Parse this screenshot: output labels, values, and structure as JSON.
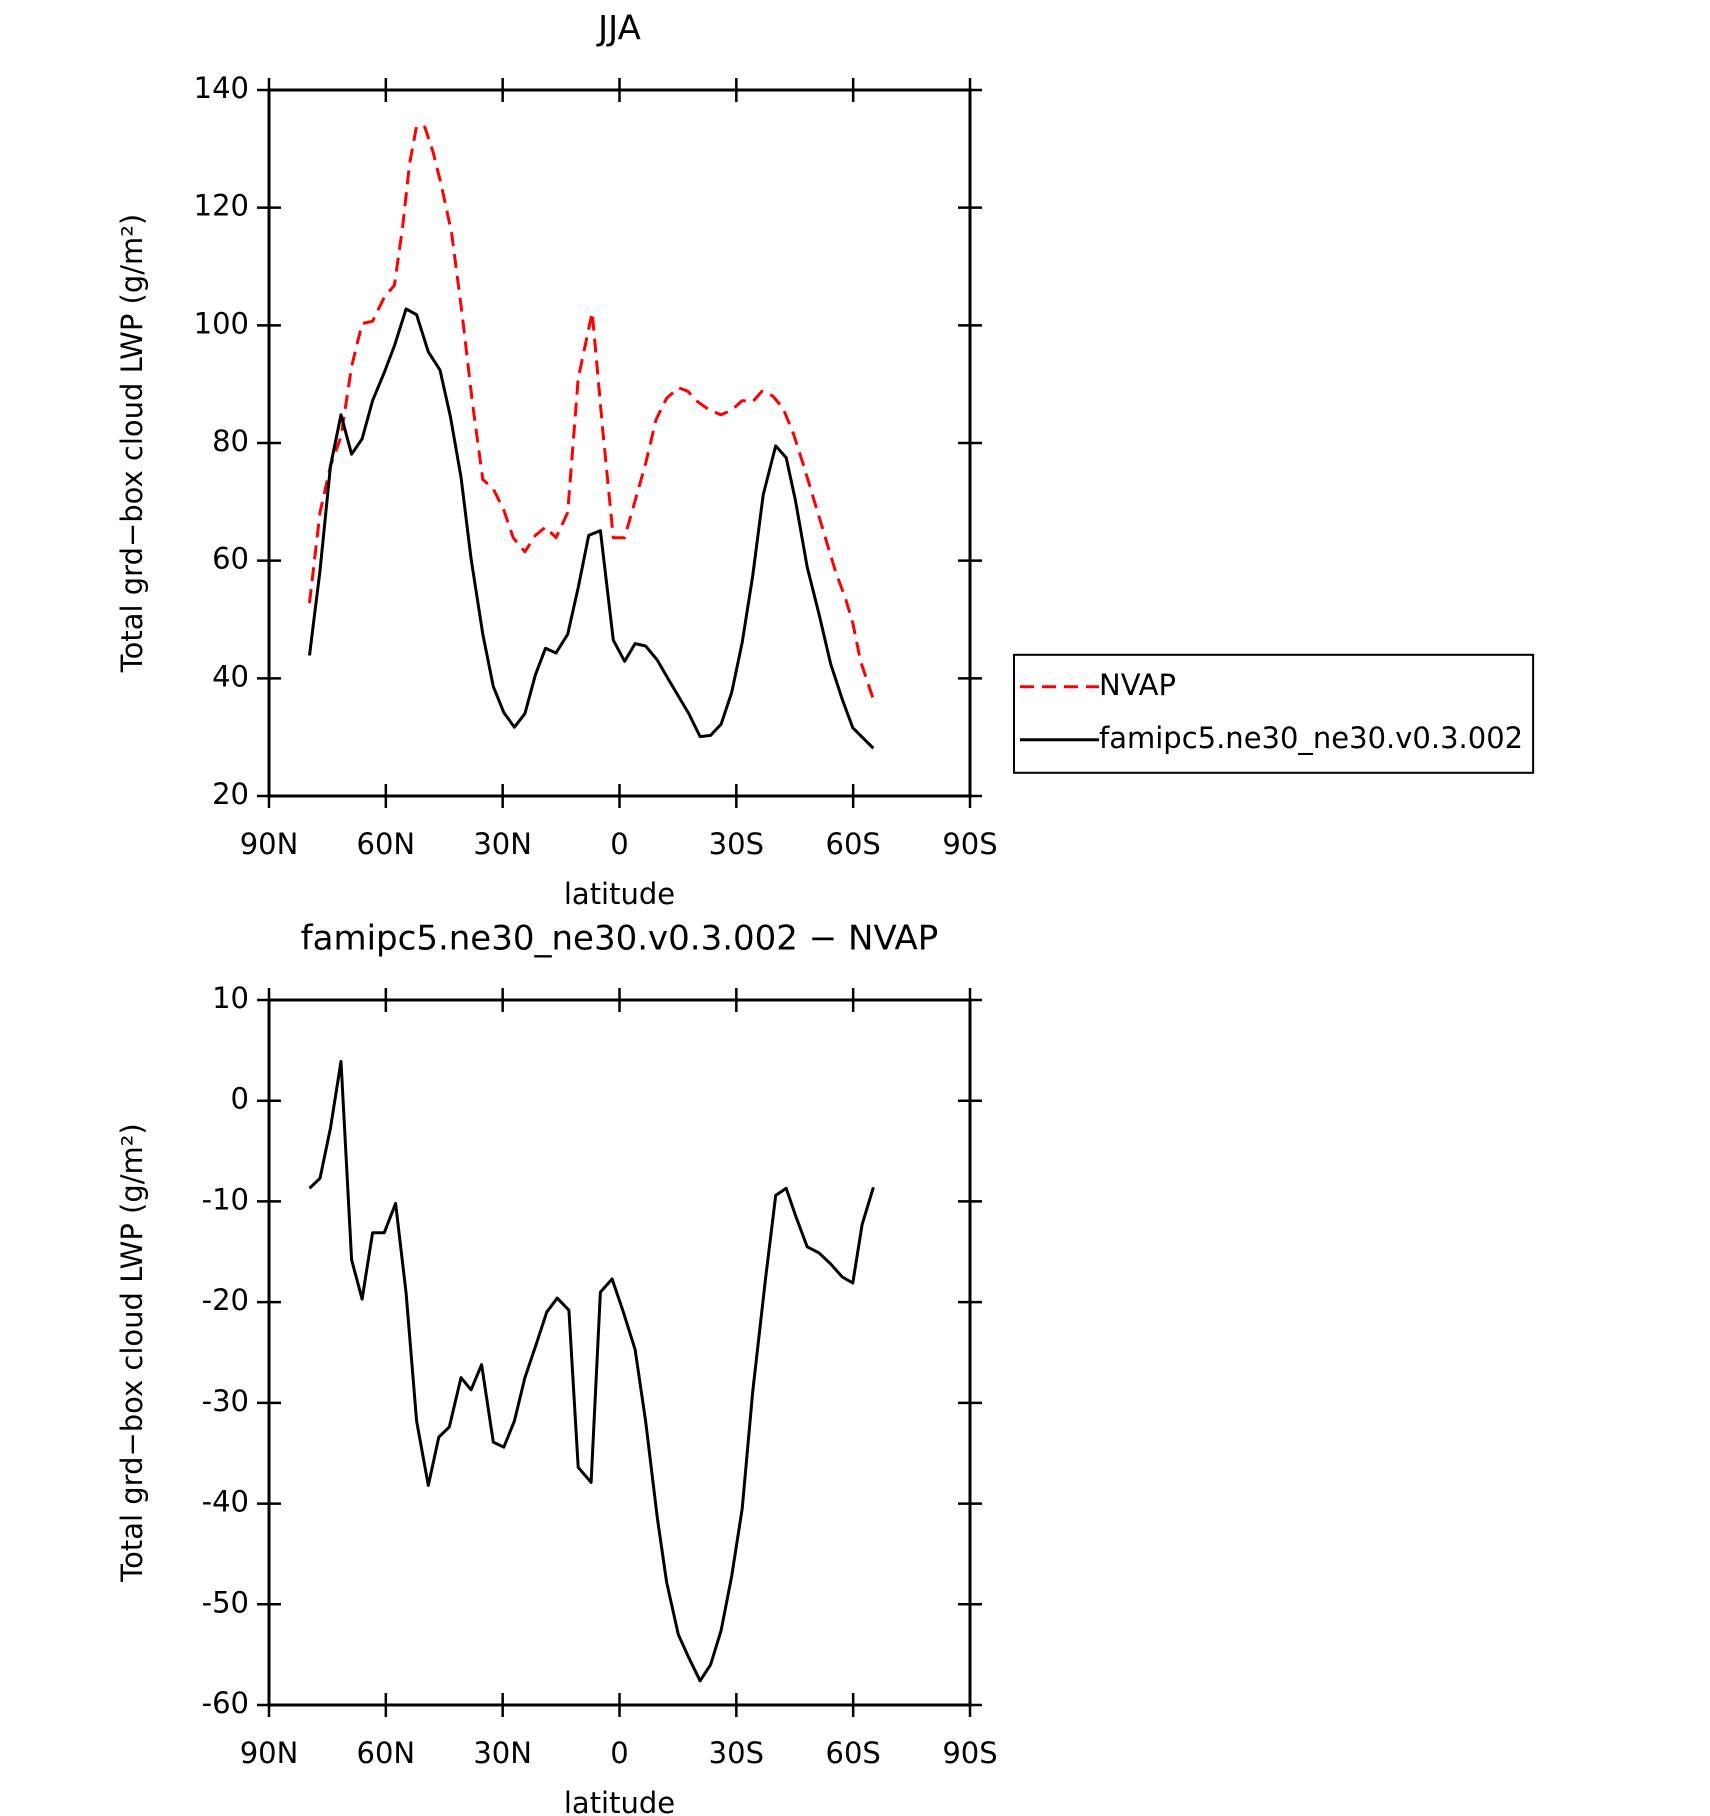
{
  "chart_data": [
    {
      "type": "line",
      "title": "JJA",
      "x_label": "latitude",
      "y_label": "Total grd−box cloud LWP (g/m²)",
      "xlim": [
        90,
        -90
      ],
      "xticks": [
        {
          "value": 90,
          "label": "90N"
        },
        {
          "value": 60,
          "label": "60N"
        },
        {
          "value": 30,
          "label": "30N"
        },
        0,
        {
          "value": -30,
          "label": "30S"
        },
        {
          "value": -60,
          "label": "60S"
        },
        {
          "value": -90,
          "label": "90S"
        }
      ],
      "ylim": [
        20,
        140
      ],
      "yticks": [
        20,
        40,
        60,
        80,
        100,
        120,
        140
      ],
      "legend": "outside-right",
      "series": [
        {
          "name": "NVAP",
          "color": "#ff0000",
          "dashed": true,
          "x": [
            79.6,
            76.9,
            74.2,
            71.5,
            68.8,
            66.1,
            63.4,
            60.4,
            57.8,
            55.7,
            53.9,
            52.1,
            50.0,
            47.9,
            45.8,
            43.1,
            40.4,
            37.8,
            35.1,
            32.4,
            29.7,
            27.3,
            24.3,
            21.6,
            19.0,
            16.3,
            13.3,
            10.6,
            7.0,
            4.3,
            1.6,
            -1.3,
            -4.0,
            -6.7,
            -9.4,
            -12.1,
            -15.1,
            -17.5,
            -20.1,
            -23.1,
            -26.1,
            -28.8,
            -31.5,
            -34.2,
            -36.6,
            -39.3,
            -41.9,
            -44.6,
            -47.3,
            -50.0,
            -52.7,
            -55.4,
            -58.1,
            -59.9,
            -61.9,
            -65.2
          ],
          "values": [
            52.8,
            68.2,
            76.1,
            81.1,
            93.0,
            100.3,
            100.7,
            104.8,
            106.8,
            116.7,
            127.5,
            133.9,
            133.7,
            129.5,
            124.0,
            115.7,
            101.8,
            87.0,
            73.8,
            72.2,
            68.6,
            63.9,
            61.5,
            64.3,
            65.7,
            63.9,
            68.2,
            91.0,
            102.2,
            82.1,
            63.9,
            63.9,
            70.2,
            76.5,
            84.0,
            87.6,
            89.4,
            88.8,
            87.0,
            85.6,
            84.8,
            85.6,
            87.2,
            87.0,
            88.8,
            88.0,
            86.0,
            81.7,
            76.1,
            70.2,
            64.3,
            58.3,
            53.4,
            49.4,
            42.9,
            36.4
          ]
        },
        {
          "name": "famipc5.ne30_ne30.v0.3.002",
          "color": "#000000",
          "dashed": false,
          "x": [
            79.6,
            76.9,
            74.2,
            71.5,
            68.8,
            66.1,
            63.4,
            60.4,
            57.8,
            54.8,
            52.1,
            49.1,
            46.1,
            43.4,
            40.7,
            38.1,
            35.1,
            32.4,
            29.7,
            27.0,
            24.3,
            21.6,
            19.0,
            16.3,
            13.3,
            10.6,
            7.9,
            4.9,
            1.6,
            -1.3,
            -4.0,
            -6.7,
            -9.7,
            -12.4,
            -15.1,
            -17.8,
            -20.7,
            -23.4,
            -26.1,
            -28.8,
            -31.5,
            -34.2,
            -36.9,
            -40.1,
            -42.8,
            -45.2,
            -48.2,
            -51.2,
            -54.2,
            -57.2,
            -59.9,
            -65.2
          ],
          "values": [
            43.9,
            58.3,
            76.1,
            84.8,
            78.1,
            80.7,
            87.2,
            92.0,
            96.5,
            102.8,
            101.8,
            95.5,
            92.4,
            84.4,
            74.2,
            60.3,
            47.5,
            38.6,
            34.2,
            31.7,
            34.0,
            40.6,
            45.1,
            44.3,
            47.5,
            55.4,
            64.3,
            65.1,
            46.5,
            42.9,
            45.9,
            45.5,
            43.1,
            40.0,
            37.0,
            34.0,
            30.1,
            30.3,
            32.2,
            37.6,
            46.1,
            57.4,
            71.2,
            79.5,
            77.5,
            70.2,
            58.9,
            51.0,
            42.5,
            36.4,
            31.6,
            28.1
          ]
        }
      ]
    },
    {
      "type": "line",
      "title": "famipc5.ne30_ne30.v0.3.002 − NVAP",
      "x_label": "latitude",
      "y_label": "Total grd−box cloud LWP (g/m²)",
      "xlim": [
        90,
        -90
      ],
      "xticks": [
        {
          "value": 90,
          "label": "90N"
        },
        {
          "value": 60,
          "label": "60N"
        },
        {
          "value": 30,
          "label": "30N"
        },
        0,
        {
          "value": -30,
          "label": "30S"
        },
        {
          "value": -60,
          "label": "60S"
        },
        {
          "value": -90,
          "label": "90S"
        }
      ],
      "ylim": [
        -60,
        10
      ],
      "yticks": [
        -60,
        -50,
        -40,
        -30,
        -20,
        -10,
        0,
        10
      ],
      "series": [
        {
          "color": "#000000",
          "dashed": false,
          "x": [
            79.6,
            76.9,
            74.2,
            71.5,
            68.8,
            66.1,
            63.4,
            60.4,
            57.5,
            54.8,
            52.1,
            49.1,
            46.4,
            43.7,
            40.7,
            38.1,
            35.4,
            32.4,
            29.7,
            27.0,
            24.3,
            21.3,
            18.7,
            16.0,
            13.0,
            10.6,
            7.3,
            4.9,
            1.9,
            -1.0,
            -4.0,
            -6.7,
            -9.7,
            -12.1,
            -15.1,
            -17.8,
            -20.7,
            -23.4,
            -26.1,
            -28.8,
            -31.5,
            -34.2,
            -37.5,
            -40.1,
            -42.8,
            -45.2,
            -48.2,
            -51.2,
            -54.2,
            -57.2,
            -59.9,
            -62.3,
            -65.2
          ],
          "values": [
            -8.7,
            -7.7,
            -2.7,
            3.9,
            -15.8,
            -19.7,
            -13.1,
            -13.1,
            -10.2,
            -19.1,
            -31.8,
            -38.2,
            -33.4,
            -32.4,
            -27.5,
            -28.7,
            -26.2,
            -33.9,
            -34.4,
            -31.8,
            -27.5,
            -24.1,
            -21.0,
            -19.6,
            -20.8,
            -36.4,
            -37.9,
            -19.0,
            -17.7,
            -21.0,
            -24.7,
            -31.8,
            -41.4,
            -47.8,
            -53.0,
            -55.3,
            -57.6,
            -56.0,
            -52.6,
            -47.2,
            -40.5,
            -28.9,
            -17.7,
            -9.4,
            -8.7,
            -11.4,
            -14.5,
            -15.1,
            -16.2,
            -17.5,
            -18.1,
            -12.3,
            -8.6
          ]
        }
      ]
    }
  ]
}
